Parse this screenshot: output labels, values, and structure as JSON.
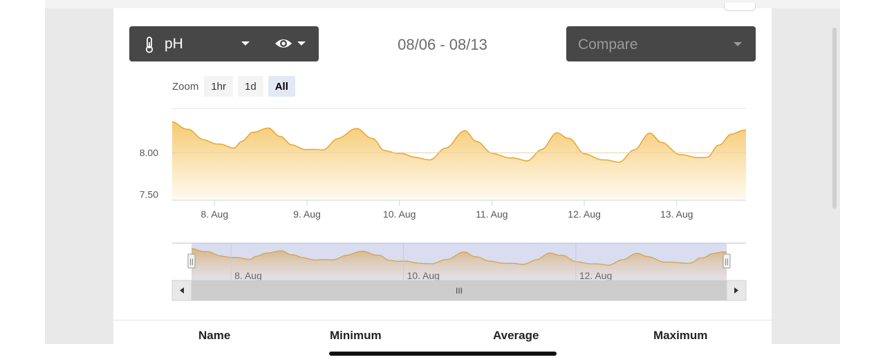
{
  "toolbar": {
    "parameter": {
      "label": "pH",
      "icon": "thermometer-icon",
      "view_icon": "eye-icon"
    },
    "date_range": "08/06 - 08/13",
    "compare": {
      "placeholder": "Compare"
    }
  },
  "zoom": {
    "label": "Zoom",
    "buttons": [
      {
        "label": "1hr",
        "active": false
      },
      {
        "label": "1d",
        "active": false
      },
      {
        "label": "All",
        "active": true
      }
    ]
  },
  "chart_data": {
    "type": "area",
    "title": "",
    "xlabel": "",
    "ylabel": "",
    "x_ticks": [
      "8. Aug",
      "9. Aug",
      "10. Aug",
      "11. Aug",
      "12. Aug",
      "13. Aug"
    ],
    "y_ticks": [
      "8.00",
      "7.50"
    ],
    "xlim": [
      "2024-08-07T13:00",
      "2024-08-13T18:00"
    ],
    "ylim": [
      7.43,
      8.53
    ],
    "grid": "horizontal",
    "colors": {
      "line": "#e8a838",
      "fill_top": "#f6c768",
      "fill_bottom": "#fffaf0"
    },
    "series": [
      {
        "x": [
          "2024-08-07T13:00",
          "2024-08-07T17:00",
          "2024-08-07T21:00",
          "2024-08-08T01:00",
          "2024-08-08T05:00",
          "2024-08-08T07:00",
          "2024-08-08T10:00",
          "2024-08-08T14:00",
          "2024-08-08T17:00",
          "2024-08-08T20:00",
          "2024-08-09T00:00",
          "2024-08-09T04:00",
          "2024-08-09T08:00",
          "2024-08-09T13:00",
          "2024-08-09T17:00",
          "2024-08-09T20:00",
          "2024-08-10T00:00",
          "2024-08-10T04:00",
          "2024-08-10T08:00",
          "2024-08-10T12:00",
          "2024-08-10T17:00",
          "2024-08-10T20:00",
          "2024-08-11T00:00",
          "2024-08-11T05:00",
          "2024-08-11T09:00",
          "2024-08-11T13:00",
          "2024-08-11T17:00",
          "2024-08-11T20:00",
          "2024-08-12T00:00",
          "2024-08-12T05:00",
          "2024-08-12T09:00",
          "2024-08-12T13:00",
          "2024-08-12T17:00",
          "2024-08-12T20:00",
          "2024-08-13T01:00",
          "2024-08-13T05:00",
          "2024-08-13T08:00",
          "2024-08-13T11:00",
          "2024-08-13T14:00",
          "2024-08-13T18:00"
        ],
        "y": [
          8.37,
          8.28,
          8.16,
          8.1,
          8.06,
          8.13,
          8.25,
          8.29,
          8.2,
          8.09,
          8.04,
          8.03,
          8.17,
          8.29,
          8.17,
          8.03,
          7.99,
          7.95,
          7.91,
          8.06,
          8.26,
          8.14,
          7.99,
          7.94,
          7.9,
          8.04,
          8.24,
          8.17,
          7.99,
          7.91,
          7.89,
          8.03,
          8.24,
          8.12,
          7.98,
          7.94,
          7.95,
          8.09,
          8.22,
          8.27
        ]
      }
    ],
    "navigator": {
      "x_ticks": [
        "8. Aug",
        "10. Aug",
        "12. Aug"
      ],
      "handle_label": "||",
      "scrollbar_thumb_label": "III"
    }
  },
  "stats": {
    "columns": [
      "Name",
      "Minimum",
      "Average",
      "Maximum"
    ]
  }
}
